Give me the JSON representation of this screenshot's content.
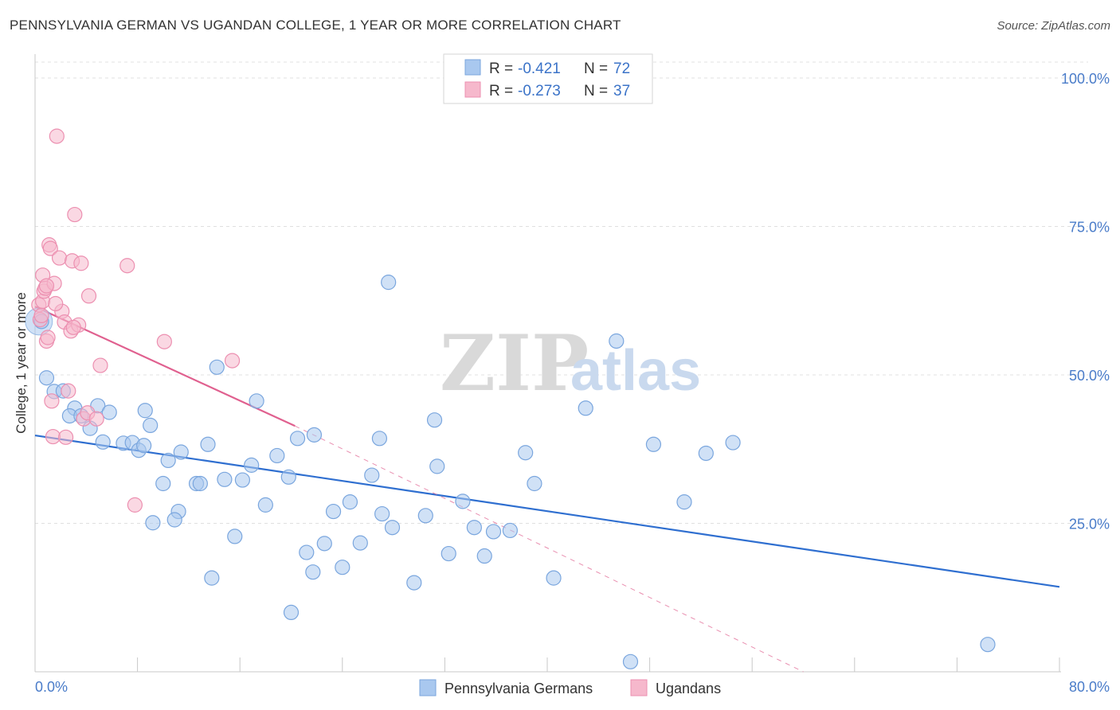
{
  "title": "PENNSYLVANIA GERMAN VS UGANDAN COLLEGE, 1 YEAR OR MORE CORRELATION CHART",
  "source": "Source: ZipAtlas.com",
  "watermark": {
    "zip": "ZIP",
    "atlas": "atlas"
  },
  "colors": {
    "blue_fill": "#a9c8ef",
    "blue_stroke": "#7aa6de",
    "blue_line": "#2f6fd0",
    "pink_fill": "#f6b8cc",
    "pink_stroke": "#ec8fb0",
    "pink_line": "#e0608f",
    "grid": "#e0e0e0",
    "tick_label": "#4a7cc9"
  },
  "legend": {
    "rows": [
      {
        "r_label": "R = ",
        "r_value": "-0.421",
        "n_label": "N = ",
        "n_value": "72"
      },
      {
        "r_label": "R = ",
        "r_value": "-0.273",
        "n_label": "N = ",
        "n_value": "37"
      }
    ]
  },
  "bottom_legend": [
    "Pennsylvania Germans",
    "Ugandans"
  ],
  "chart_data": {
    "type": "scatter",
    "title": "PENNSYLVANIA GERMAN VS UGANDAN COLLEGE, 1 YEAR OR MORE CORRELATION CHART",
    "xlabel": "",
    "ylabel": "College, 1 year or more",
    "xlim": [
      0,
      80
    ],
    "ylim": [
      0,
      100
    ],
    "x_tick_labels": [
      "0.0%",
      "80.0%"
    ],
    "y_ticks": [
      25,
      50,
      75,
      100
    ],
    "y_tick_labels": [
      "25.0%",
      "50.0%",
      "75.0%",
      "100.0%"
    ],
    "grid": true,
    "legend_position": "top-center",
    "series": [
      {
        "name": "Pennsylvania Germans",
        "r": -0.421,
        "n": 72,
        "trend": {
          "x0": 0,
          "y0": 39.8,
          "x1": 80,
          "y1": 14.3
        },
        "points": [
          [
            0.5,
            59
          ],
          [
            0.9,
            49.5
          ],
          [
            1.5,
            47.2
          ],
          [
            2.2,
            47.3
          ],
          [
            3.1,
            44.4
          ],
          [
            2.7,
            43.1
          ],
          [
            3.6,
            43.1
          ],
          [
            4.9,
            44.8
          ],
          [
            5.8,
            43.7
          ],
          [
            4.3,
            41.0
          ],
          [
            5.3,
            38.7
          ],
          [
            6.9,
            38.5
          ],
          [
            7.6,
            38.6
          ],
          [
            8.1,
            37.3
          ],
          [
            8.5,
            38.1
          ],
          [
            9.0,
            41.5
          ],
          [
            8.6,
            44.0
          ],
          [
            10.4,
            35.6
          ],
          [
            11.4,
            37.0
          ],
          [
            10.0,
            31.7
          ],
          [
            12.6,
            31.7
          ],
          [
            12.9,
            31.7
          ],
          [
            13.5,
            38.3
          ],
          [
            14.2,
            51.3
          ],
          [
            14.8,
            32.4
          ],
          [
            15.6,
            22.8
          ],
          [
            16.2,
            32.3
          ],
          [
            16.9,
            34.8
          ],
          [
            17.3,
            45.6
          ],
          [
            18.0,
            28.1
          ],
          [
            18.9,
            36.4
          ],
          [
            19.8,
            32.8
          ],
          [
            20.5,
            39.3
          ],
          [
            21.2,
            20.1
          ],
          [
            21.7,
            16.8
          ],
          [
            21.8,
            39.9
          ],
          [
            22.6,
            21.6
          ],
          [
            23.3,
            27.0
          ],
          [
            24.0,
            17.6
          ],
          [
            24.6,
            28.6
          ],
          [
            25.4,
            21.7
          ],
          [
            26.3,
            33.1
          ],
          [
            26.9,
            39.3
          ],
          [
            27.1,
            26.6
          ],
          [
            27.6,
            65.6
          ],
          [
            27.9,
            24.3
          ],
          [
            29.6,
            15.0
          ],
          [
            30.5,
            26.3
          ],
          [
            31.2,
            42.4
          ],
          [
            31.4,
            34.6
          ],
          [
            32.3,
            19.9
          ],
          [
            33.4,
            28.7
          ],
          [
            34.3,
            24.3
          ],
          [
            35.1,
            19.5
          ],
          [
            35.8,
            23.6
          ],
          [
            37.1,
            23.8
          ],
          [
            38.3,
            36.9
          ],
          [
            39.0,
            31.7
          ],
          [
            40.5,
            15.8
          ],
          [
            43.0,
            44.4
          ],
          [
            45.4,
            55.7
          ],
          [
            46.5,
            1.7
          ],
          [
            48.3,
            38.3
          ],
          [
            50.7,
            28.6
          ],
          [
            52.4,
            36.8
          ],
          [
            54.5,
            38.6
          ],
          [
            74.4,
            4.6
          ],
          [
            20.0,
            10.0
          ],
          [
            11.2,
            27.0
          ],
          [
            9.2,
            25.1
          ],
          [
            10.9,
            25.6
          ],
          [
            13.8,
            15.8
          ]
        ]
      },
      {
        "name": "Ugandans",
        "r": -0.273,
        "n": 37,
        "trend": {
          "x0": 0,
          "y0": 61.5,
          "x1": 20.3,
          "y1": 41.4,
          "dash_x1": 60,
          "dash_y1": 0
        },
        "points": [
          [
            0.3,
            61.8
          ],
          [
            0.4,
            59.3
          ],
          [
            0.6,
            62.4
          ],
          [
            0.7,
            64.1
          ],
          [
            0.6,
            66.8
          ],
          [
            0.8,
            64.6
          ],
          [
            0.9,
            55.7
          ],
          [
            1.0,
            56.3
          ],
          [
            1.1,
            71.9
          ],
          [
            1.2,
            71.3
          ],
          [
            1.3,
            45.6
          ],
          [
            1.4,
            39.6
          ],
          [
            1.5,
            65.4
          ],
          [
            1.7,
            90.2
          ],
          [
            1.9,
            69.7
          ],
          [
            2.1,
            60.7
          ],
          [
            2.3,
            58.9
          ],
          [
            2.4,
            39.5
          ],
          [
            2.6,
            47.3
          ],
          [
            2.8,
            57.4
          ],
          [
            2.9,
            69.2
          ],
          [
            3.1,
            77.0
          ],
          [
            3.4,
            58.4
          ],
          [
            3.6,
            68.8
          ],
          [
            3.8,
            42.6
          ],
          [
            4.1,
            43.6
          ],
          [
            4.2,
            63.3
          ],
          [
            4.8,
            42.6
          ],
          [
            5.1,
            51.6
          ],
          [
            7.2,
            68.4
          ],
          [
            7.8,
            28.1
          ],
          [
            10.1,
            55.6
          ],
          [
            15.4,
            52.4
          ],
          [
            0.9,
            65.0
          ],
          [
            0.5,
            60.0
          ],
          [
            1.6,
            62.0
          ],
          [
            3.0,
            58.0
          ]
        ]
      }
    ]
  }
}
